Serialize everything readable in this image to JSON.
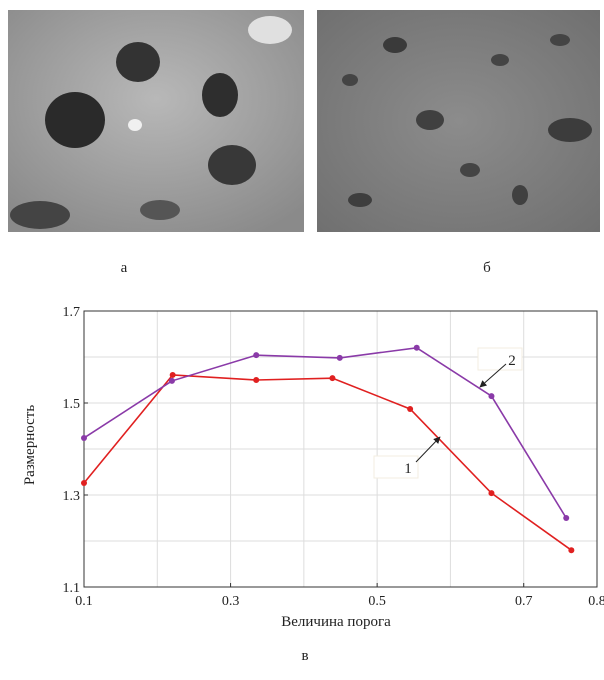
{
  "panels": {
    "left": "а",
    "right": "б",
    "bottom": "в"
  },
  "chart_data": {
    "type": "line",
    "xlabel": "Величина порога",
    "ylabel": "Размерность",
    "xlim": [
      0.1,
      0.8
    ],
    "ylim": [
      1.1,
      1.7
    ],
    "xticks": [
      0.1,
      0.3,
      0.5,
      0.7,
      0.8
    ],
    "yticks": [
      1.1,
      1.3,
      1.5,
      1.7
    ],
    "xgrid": [
      0.1,
      0.2,
      0.3,
      0.4,
      0.5,
      0.6,
      0.7,
      0.8
    ],
    "ygrid": [
      1.1,
      1.2,
      1.3,
      1.4,
      1.5,
      1.6,
      1.7
    ],
    "grid": true,
    "series": [
      {
        "name": "1",
        "color": "#e02020",
        "x": [
          0.1,
          0.221,
          0.335,
          0.439,
          0.545,
          0.656,
          0.765
        ],
        "values": [
          1.326,
          1.561,
          1.55,
          1.554,
          1.487,
          1.304,
          1.18
        ]
      },
      {
        "name": "2",
        "color": "#8a3aa8",
        "x": [
          0.1,
          0.22,
          0.335,
          0.449,
          0.554,
          0.656,
          0.758
        ],
        "values": [
          1.424,
          1.548,
          1.604,
          1.598,
          1.62,
          1.515,
          1.25
        ]
      }
    ]
  }
}
